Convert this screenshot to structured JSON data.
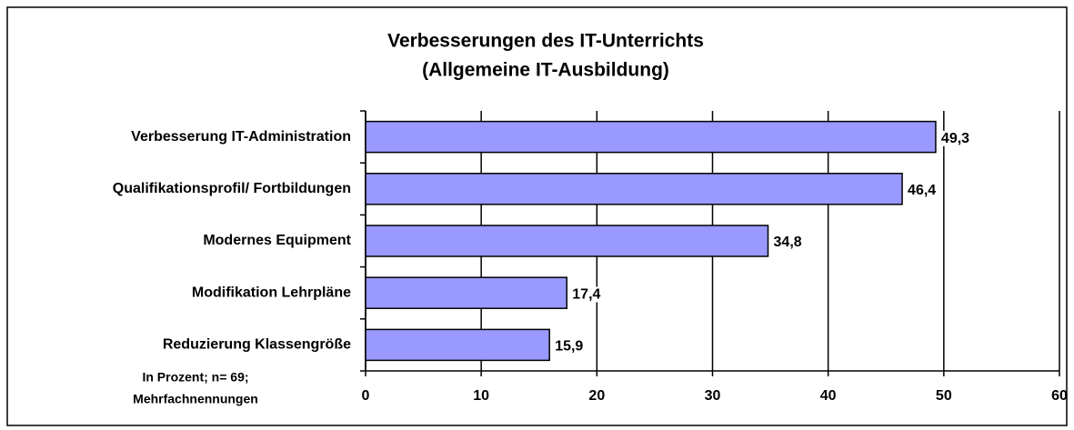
{
  "chart_data": {
    "type": "bar",
    "orientation": "horizontal",
    "title": "Verbesserungen des  IT-Unterrichts",
    "subtitle": "(Allgemeine IT-Ausbildung)",
    "note": [
      "In Prozent; n= 69;",
      "Mehrfachnennungen"
    ],
    "categories": [
      "Verbesserung IT-Administration",
      "Qualifikationsprofil/ Fortbildungen",
      "Modernes Equipment",
      "Modifikation Lehrpläne",
      "Reduzierung Klassengröße"
    ],
    "values": [
      49.3,
      46.4,
      34.8,
      17.4,
      15.9
    ],
    "value_labels": [
      "49,3",
      "46,4",
      "34,8",
      "17,4",
      "15,9"
    ],
    "color": "#9999ff",
    "xlim": [
      0,
      60
    ],
    "xticks": [
      0,
      10,
      20,
      30,
      40,
      50,
      60
    ],
    "grid": true
  }
}
